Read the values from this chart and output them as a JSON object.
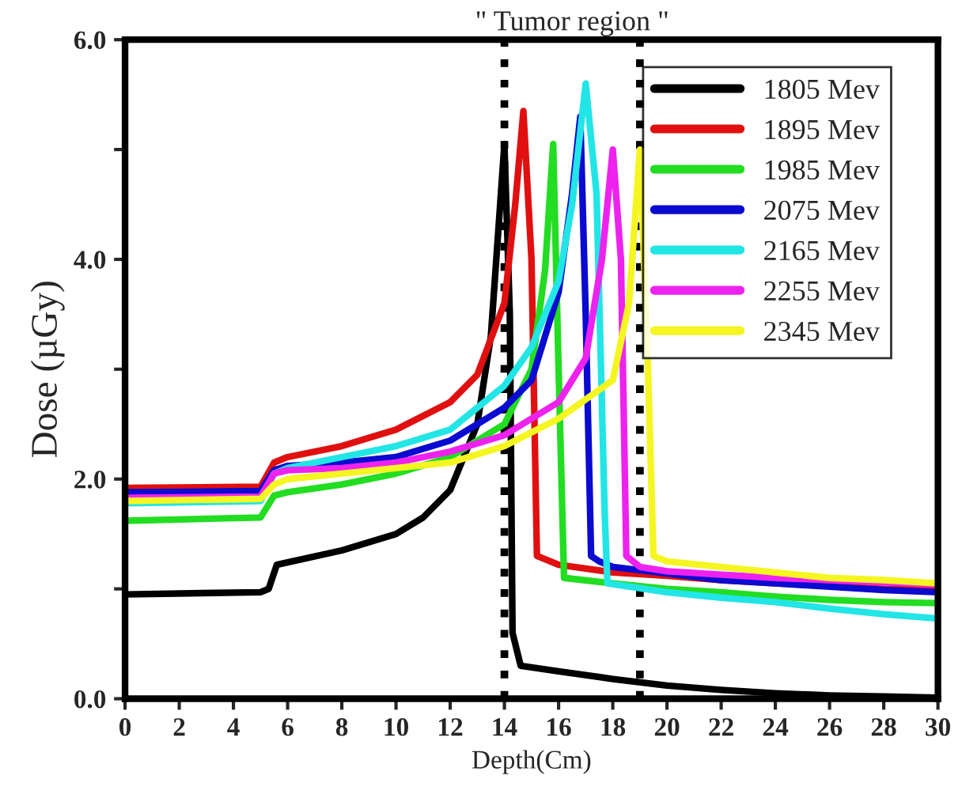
{
  "chart_data": {
    "type": "line",
    "xlabel": "Depth(Cm)",
    "ylabel": "Dose (µGy)",
    "annotations": [
      "\" Tumor region \""
    ],
    "xlim": [
      0,
      30
    ],
    "xticks": [
      0,
      2,
      4,
      6,
      8,
      10,
      12,
      14,
      16,
      18,
      20,
      22,
      24,
      26,
      28,
      30
    ],
    "ylim": [
      0,
      6
    ],
    "yticks": [
      {
        "value": 0,
        "label": "0.0"
      },
      {
        "value": 1,
        "label": null
      },
      {
        "value": 2,
        "label": "2.0"
      },
      {
        "value": 3,
        "label": null
      },
      {
        "value": 4,
        "label": "4.0"
      },
      {
        "value": 5,
        "label": null
      },
      {
        "value": 6,
        "label": "6.0"
      }
    ],
    "grid": false,
    "legend": "top right",
    "line_style": "solid",
    "ref_lines": [
      {
        "axis": "x",
        "value": 14,
        "color": "#000000",
        "line_style": "dotted"
      },
      {
        "axis": "x",
        "value": 19,
        "color": "#000000",
        "line_style": "dotted"
      }
    ],
    "series": [
      {
        "name": "1805 Mev",
        "color": "#000000",
        "x": [
          0,
          5,
          5.3,
          5.6,
          8,
          10,
          11,
          12,
          13,
          13.5,
          14.0,
          14.2,
          14.3,
          14.6,
          16,
          18,
          20,
          22,
          24,
          26,
          28,
          30
        ],
        "values": [
          0.95,
          0.97,
          1.0,
          1.22,
          1.35,
          1.5,
          1.65,
          1.9,
          2.5,
          3.3,
          5.05,
          3.5,
          0.6,
          0.3,
          0.25,
          0.18,
          0.12,
          0.08,
          0.05,
          0.03,
          0.02,
          0.01
        ]
      },
      {
        "name": "1895 Mev",
        "color": "#e01010",
        "x": [
          0,
          5,
          5.5,
          6,
          8,
          10,
          12,
          13,
          14,
          14.4,
          14.7,
          15.0,
          15.2,
          16,
          18,
          20,
          22,
          24,
          26,
          28,
          30
        ],
        "values": [
          1.92,
          1.93,
          2.15,
          2.2,
          2.3,
          2.45,
          2.7,
          2.95,
          3.6,
          4.5,
          5.35,
          4.0,
          1.3,
          1.22,
          1.15,
          1.12,
          1.08,
          1.05,
          1.03,
          1.0,
          1.0
        ]
      },
      {
        "name": "1985 Mev",
        "color": "#22dd22",
        "x": [
          0,
          5,
          5.5,
          6,
          8,
          10,
          12,
          14,
          15,
          15.5,
          15.8,
          16.0,
          16.2,
          18,
          20,
          22,
          24,
          26,
          28,
          30
        ],
        "values": [
          1.62,
          1.65,
          1.85,
          1.88,
          1.95,
          2.05,
          2.2,
          2.5,
          3.0,
          3.9,
          5.05,
          3.0,
          1.1,
          1.05,
          1.0,
          0.97,
          0.93,
          0.9,
          0.88,
          0.87
        ]
      },
      {
        "name": "2075 Mev",
        "color": "#0a0ad0",
        "x": [
          0,
          5,
          5.5,
          6,
          8,
          10,
          12,
          14,
          15,
          16,
          16.5,
          16.8,
          17,
          17.2,
          17.5,
          18,
          20,
          22,
          24,
          26,
          28,
          30
        ],
        "values": [
          1.88,
          1.89,
          2.08,
          2.12,
          2.15,
          2.2,
          2.35,
          2.65,
          2.9,
          3.7,
          4.6,
          5.3,
          3.5,
          1.3,
          1.25,
          1.2,
          1.14,
          1.08,
          1.05,
          1.02,
          0.99,
          0.97
        ]
      },
      {
        "name": "2165 Mev",
        "color": "#22e5e5",
        "x": [
          0,
          5,
          5.5,
          6,
          8,
          10,
          12,
          14,
          15,
          16,
          16.5,
          17.0,
          17.4,
          17.7,
          17.8,
          20,
          22,
          24,
          26,
          28,
          30
        ],
        "values": [
          1.78,
          1.8,
          2.05,
          2.1,
          2.2,
          2.3,
          2.45,
          2.85,
          3.2,
          3.8,
          4.5,
          5.6,
          4.6,
          1.7,
          1.05,
          0.97,
          0.92,
          0.88,
          0.82,
          0.77,
          0.73
        ]
      },
      {
        "name": "2255 Mev",
        "color": "#ee22ee",
        "x": [
          0,
          5,
          5.5,
          6,
          8,
          10,
          12,
          14,
          16,
          17,
          17.6,
          18.0,
          18.3,
          18.5,
          19,
          20,
          22,
          24,
          26,
          28,
          30
        ],
        "values": [
          1.83,
          1.84,
          2.05,
          2.08,
          2.1,
          2.15,
          2.25,
          2.4,
          2.7,
          3.1,
          4.0,
          5.0,
          4.0,
          1.3,
          1.2,
          1.16,
          1.13,
          1.1,
          1.08,
          1.06,
          1.04
        ]
      },
      {
        "name": "2345 Mev",
        "color": "#f5f522",
        "x": [
          0,
          5,
          5.5,
          6,
          8,
          10,
          12,
          14,
          16,
          18,
          18.6,
          19.0,
          19.3,
          19.5,
          20,
          22,
          24,
          26,
          28,
          30
        ],
        "values": [
          1.8,
          1.82,
          1.95,
          2.0,
          2.05,
          2.1,
          2.15,
          2.3,
          2.55,
          2.9,
          3.6,
          5.0,
          3.0,
          1.3,
          1.25,
          1.2,
          1.15,
          1.1,
          1.08,
          1.05
        ]
      }
    ]
  }
}
